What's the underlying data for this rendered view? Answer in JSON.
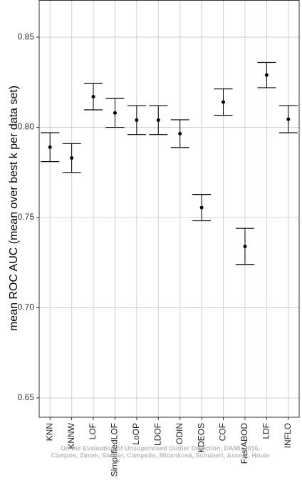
{
  "chart_data": {
    "type": "errorbar",
    "y_label": "mean ROC AUC (mean over best k per data set)",
    "categories": [
      "KNN",
      "KNNW",
      "LOF",
      "SimplifiedLOF",
      "LoOP",
      "LDOF",
      "ODIN",
      "KDEOS",
      "COF",
      "FastABOD",
      "LDF",
      "INFLO"
    ],
    "values": [
      0.789,
      0.783,
      0.817,
      0.808,
      0.804,
      0.804,
      0.7965,
      0.7555,
      0.814,
      0.734,
      0.829,
      0.8045
    ],
    "errors": [
      0.008,
      0.008,
      0.0073,
      0.008,
      0.008,
      0.008,
      0.0077,
      0.0073,
      0.0073,
      0.01,
      0.007,
      0.0075
    ],
    "color": "#000000",
    "ylim": [
      0.6393,
      0.8706
    ],
    "yticks": [
      0.65,
      {
        "value": 0.7,
        "label": "0.70"
      },
      0.75,
      {
        "value": 0.8,
        "label": "0.80"
      },
      0.85
    ],
    "grid": true,
    "watermark": [
      "On the Evaluation of Unsupervised Outlier Detection, DAMI, 2016.",
      "Campos, Zimek, Sander, Campello, Micenková, Schubert, Assent, Houle"
    ]
  }
}
